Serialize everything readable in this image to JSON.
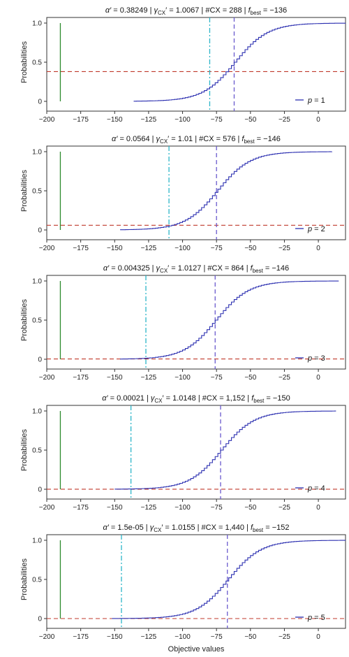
{
  "chart_data": [
    {
      "type": "line",
      "title_parts": {
        "alpha": "0.38249",
        "gamma": "1.0067",
        "cx": "288",
        "fbest": "−136"
      },
      "legend": {
        "label_prefix": "p",
        "label_value": "1",
        "placement": "lower-right"
      },
      "xlim": [
        -200,
        20
      ],
      "ylim": [
        0,
        1
      ],
      "xticks": [
        -200,
        -175,
        -150,
        -125,
        -100,
        -75,
        -50,
        -25,
        0
      ],
      "xtick_labels": [
        "−200",
        "−175",
        "−150",
        "−125",
        "−100",
        "−75",
        "−50",
        "−25",
        "0"
      ],
      "yticks": [
        0,
        0.5,
        1.0
      ],
      "ytick_labels": [
        "0",
        "0.5",
        "1.0"
      ],
      "ylabel": "Probabilities",
      "xlabel": "",
      "series": [
        {
          "kind": "step-cdf",
          "x_start": -136,
          "x_end": 20,
          "center": -62,
          "scale": 12,
          "step": 2,
          "color": "#2b2fb0"
        }
      ],
      "vlines": [
        {
          "x": -190,
          "color": "#2e8b2e",
          "style": "solid"
        },
        {
          "x": -80,
          "color": "#2bb5c8",
          "style": "dashdot"
        },
        {
          "x": -62,
          "color": "#6a5acd",
          "style": "dashed"
        }
      ],
      "hline": {
        "y": 0.38,
        "color": "#c0392b",
        "style": "dashed"
      }
    },
    {
      "type": "line",
      "title_parts": {
        "alpha": "0.0564",
        "gamma": "1.01",
        "cx": "576",
        "fbest": "−146"
      },
      "legend": {
        "label_prefix": "p",
        "label_value": "2",
        "placement": "lower-right"
      },
      "xlim": [
        -200,
        20
      ],
      "ylim": [
        0,
        1
      ],
      "xticks": [
        -200,
        -175,
        -150,
        -125,
        -100,
        -75,
        -50,
        -25,
        0
      ],
      "xtick_labels": [
        "−200",
        "−175",
        "−150",
        "−125",
        "−100",
        "−75",
        "−50",
        "−25",
        "0"
      ],
      "yticks": [
        0,
        0.5,
        1.0
      ],
      "ytick_labels": [
        "0",
        "0.5",
        "1.0"
      ],
      "ylabel": "Probabilities",
      "xlabel": "",
      "series": [
        {
          "kind": "step-cdf",
          "x_start": -146,
          "x_end": 10,
          "center": -75,
          "scale": 12,
          "step": 2,
          "color": "#2b2fb0"
        }
      ],
      "vlines": [
        {
          "x": -190,
          "color": "#2e8b2e",
          "style": "solid"
        },
        {
          "x": -110,
          "color": "#2bb5c8",
          "style": "dashdot"
        },
        {
          "x": -75,
          "color": "#6a5acd",
          "style": "dashed"
        }
      ],
      "hline": {
        "y": 0.06,
        "color": "#c0392b",
        "style": "dashed"
      }
    },
    {
      "type": "line",
      "title_parts": {
        "alpha": "0.004325",
        "gamma": "1.0127",
        "cx": "864",
        "fbest": "−146"
      },
      "legend": {
        "label_prefix": "p",
        "label_value": "3",
        "placement": "lower-right"
      },
      "xlim": [
        -200,
        20
      ],
      "ylim": [
        0,
        1
      ],
      "xticks": [
        -200,
        -175,
        -150,
        -125,
        -100,
        -75,
        -50,
        -25,
        0
      ],
      "xtick_labels": [
        "−200",
        "−175",
        "−150",
        "−125",
        "−100",
        "−75",
        "−50",
        "−25",
        "0"
      ],
      "yticks": [
        0,
        0.5,
        1.0
      ],
      "ytick_labels": [
        "0",
        "0.5",
        "1.0"
      ],
      "ylabel": "Probabilities",
      "xlabel": "",
      "series": [
        {
          "kind": "step-cdf",
          "x_start": -146,
          "x_end": 15,
          "center": -76,
          "scale": 12,
          "step": 2,
          "color": "#2b2fb0"
        }
      ],
      "vlines": [
        {
          "x": -190,
          "color": "#2e8b2e",
          "style": "solid"
        },
        {
          "x": -127,
          "color": "#2bb5c8",
          "style": "dashdot"
        },
        {
          "x": -76,
          "color": "#6a5acd",
          "style": "dashed"
        }
      ],
      "hline": {
        "y": 0.004,
        "color": "#c0392b",
        "style": "dashed"
      }
    },
    {
      "type": "line",
      "title_parts": {
        "alpha": "0.00021",
        "gamma": "1.0148",
        "cx": "1,152",
        "fbest": "−150"
      },
      "legend": {
        "label_prefix": "p",
        "label_value": "4",
        "placement": "lower-right"
      },
      "xlim": [
        -200,
        20
      ],
      "ylim": [
        0,
        1
      ],
      "xticks": [
        -200,
        -175,
        -150,
        -125,
        -100,
        -75,
        -50,
        -25,
        0
      ],
      "xtick_labels": [
        "−200",
        "−175",
        "−150",
        "−125",
        "−100",
        "−75",
        "−50",
        "−25",
        "0"
      ],
      "yticks": [
        0,
        0.5,
        1.0
      ],
      "ytick_labels": [
        "0",
        "0.5",
        "1.0"
      ],
      "ylabel": "Probabilities",
      "xlabel": "",
      "series": [
        {
          "kind": "step-cdf",
          "x_start": -150,
          "x_end": 13,
          "center": -72,
          "scale": 12,
          "step": 2,
          "color": "#2b2fb0"
        }
      ],
      "vlines": [
        {
          "x": -190,
          "color": "#2e8b2e",
          "style": "solid"
        },
        {
          "x": -138,
          "color": "#2bb5c8",
          "style": "dashdot"
        },
        {
          "x": -72,
          "color": "#6a5acd",
          "style": "dashed"
        }
      ],
      "hline": {
        "y": 0.0002,
        "color": "#c0392b",
        "style": "dashed"
      }
    },
    {
      "type": "line",
      "title_parts": {
        "alpha": "1.5e-05",
        "gamma": "1.0155",
        "cx": "1,440",
        "fbest": "−152"
      },
      "legend": {
        "label_prefix": "p",
        "label_value": "5",
        "placement": "lower-right"
      },
      "xlim": [
        -200,
        20
      ],
      "ylim": [
        0,
        1
      ],
      "xticks": [
        -200,
        -175,
        -150,
        -125,
        -100,
        -75,
        -50,
        -25,
        0
      ],
      "xtick_labels": [
        "−200",
        "−175",
        "−150",
        "−125",
        "−100",
        "−75",
        "−50",
        "−25",
        "0"
      ],
      "yticks": [
        0,
        0.5,
        1.0
      ],
      "ytick_labels": [
        "0",
        "0.5",
        "1.0"
      ],
      "ylabel": "Probabilities",
      "xlabel": "Objective values",
      "series": [
        {
          "kind": "step-cdf",
          "x_start": -152,
          "x_end": 20,
          "center": -67,
          "scale": 12,
          "step": 2,
          "color": "#2b2fb0"
        }
      ],
      "vlines": [
        {
          "x": -190,
          "color": "#2e8b2e",
          "style": "solid"
        },
        {
          "x": -145,
          "color": "#2bb5c8",
          "style": "dashdot"
        },
        {
          "x": -67,
          "color": "#6a5acd",
          "style": "dashed"
        }
      ],
      "hline": {
        "y": 2e-05,
        "color": "#c0392b",
        "style": "dashed"
      }
    }
  ]
}
